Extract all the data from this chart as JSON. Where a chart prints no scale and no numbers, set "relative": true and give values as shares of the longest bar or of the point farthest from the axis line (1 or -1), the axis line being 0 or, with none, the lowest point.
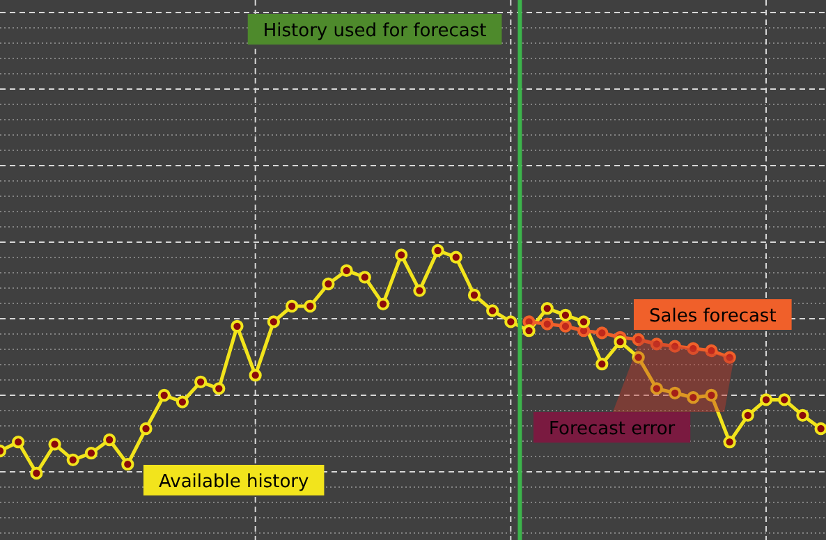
{
  "chart_data": {
    "type": "line",
    "relative": true,
    "categories": [
      null,
      null,
      null,
      null,
      null,
      null,
      null,
      null,
      null,
      null,
      null,
      null,
      null,
      null,
      null,
      null,
      null,
      null,
      null,
      null,
      null,
      null,
      null,
      null,
      null,
      null,
      null,
      null,
      null,
      null,
      null,
      null,
      null,
      null,
      null,
      null,
      null,
      null,
      null,
      null,
      null,
      null,
      null,
      null,
      null,
      null
    ],
    "grid": true,
    "marker": "circle",
    "line_style": "solid",
    "series": [
      {
        "name": "Available history",
        "color": "#f2e41c",
        "values": [
          0.1,
          0.14,
          0,
          0.13,
          0.06,
          0.09,
          0.15,
          0.04,
          0.2,
          0.35,
          0.32,
          0.41,
          0.38,
          0.66,
          0.44,
          0.68,
          0.75,
          0.75,
          0.85,
          0.91,
          0.88,
          0.76,
          0.98,
          0.82,
          1,
          0.97,
          0.8,
          0.73,
          0.68,
          0.64,
          0.74,
          0.71,
          0.68,
          0.49,
          0.59,
          0.52,
          0.38,
          0.36,
          0.34,
          0.35,
          0.14,
          0.26,
          0.33,
          0.33,
          0.26,
          0.2
        ]
      },
      {
        "name": "Sales forecast",
        "color": "#f0602a",
        "values": [
          null,
          null,
          null,
          null,
          null,
          null,
          null,
          null,
          null,
          null,
          null,
          null,
          null,
          null,
          null,
          null,
          null,
          null,
          null,
          null,
          null,
          null,
          null,
          null,
          null,
          null,
          null,
          null,
          null,
          0.68,
          0.67,
          0.66,
          0.64,
          0.63,
          0.61,
          0.6,
          0.58,
          0.57,
          0.56,
          0.55,
          0.52,
          null,
          null,
          null,
          null,
          null
        ]
      }
    ],
    "annotations": [
      "History used for forecast",
      "Forecast error"
    ]
  }
}
